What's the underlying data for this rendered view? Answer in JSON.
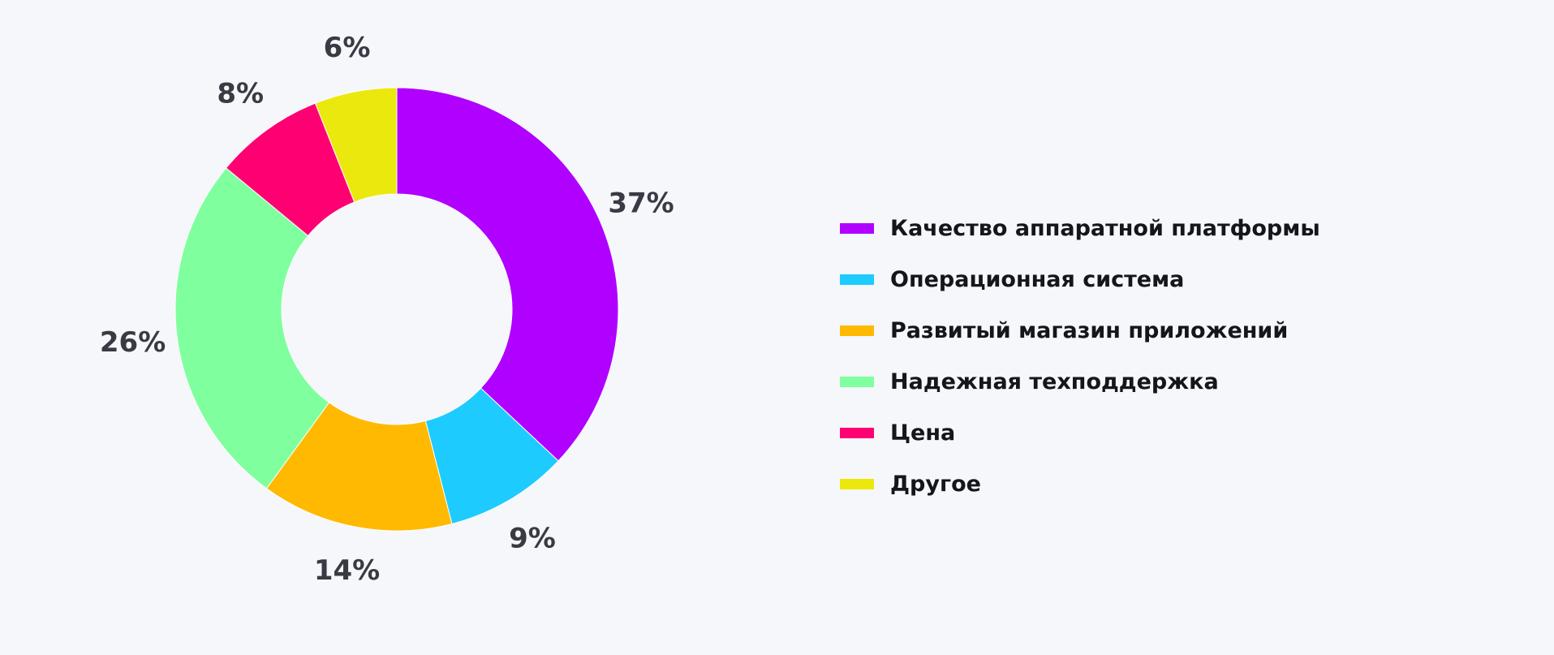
{
  "chart_data": {
    "type": "pie",
    "donut": true,
    "categories": [
      "Качество аппаратной платформы",
      "Операционная система",
      "Развитый магазин приложений",
      "Надежная техподдержка",
      "Цена",
      "Другое"
    ],
    "values": [
      37,
      9,
      14,
      26,
      8,
      6
    ],
    "labels": [
      "37%",
      "9%",
      "14%",
      "26%",
      "8%",
      "6%"
    ],
    "colors": [
      "#b000ff",
      "#1ecbff",
      "#ffb900",
      "#80ff9e",
      "#ff0073",
      "#ebe80e"
    ],
    "legend_position": "right"
  }
}
